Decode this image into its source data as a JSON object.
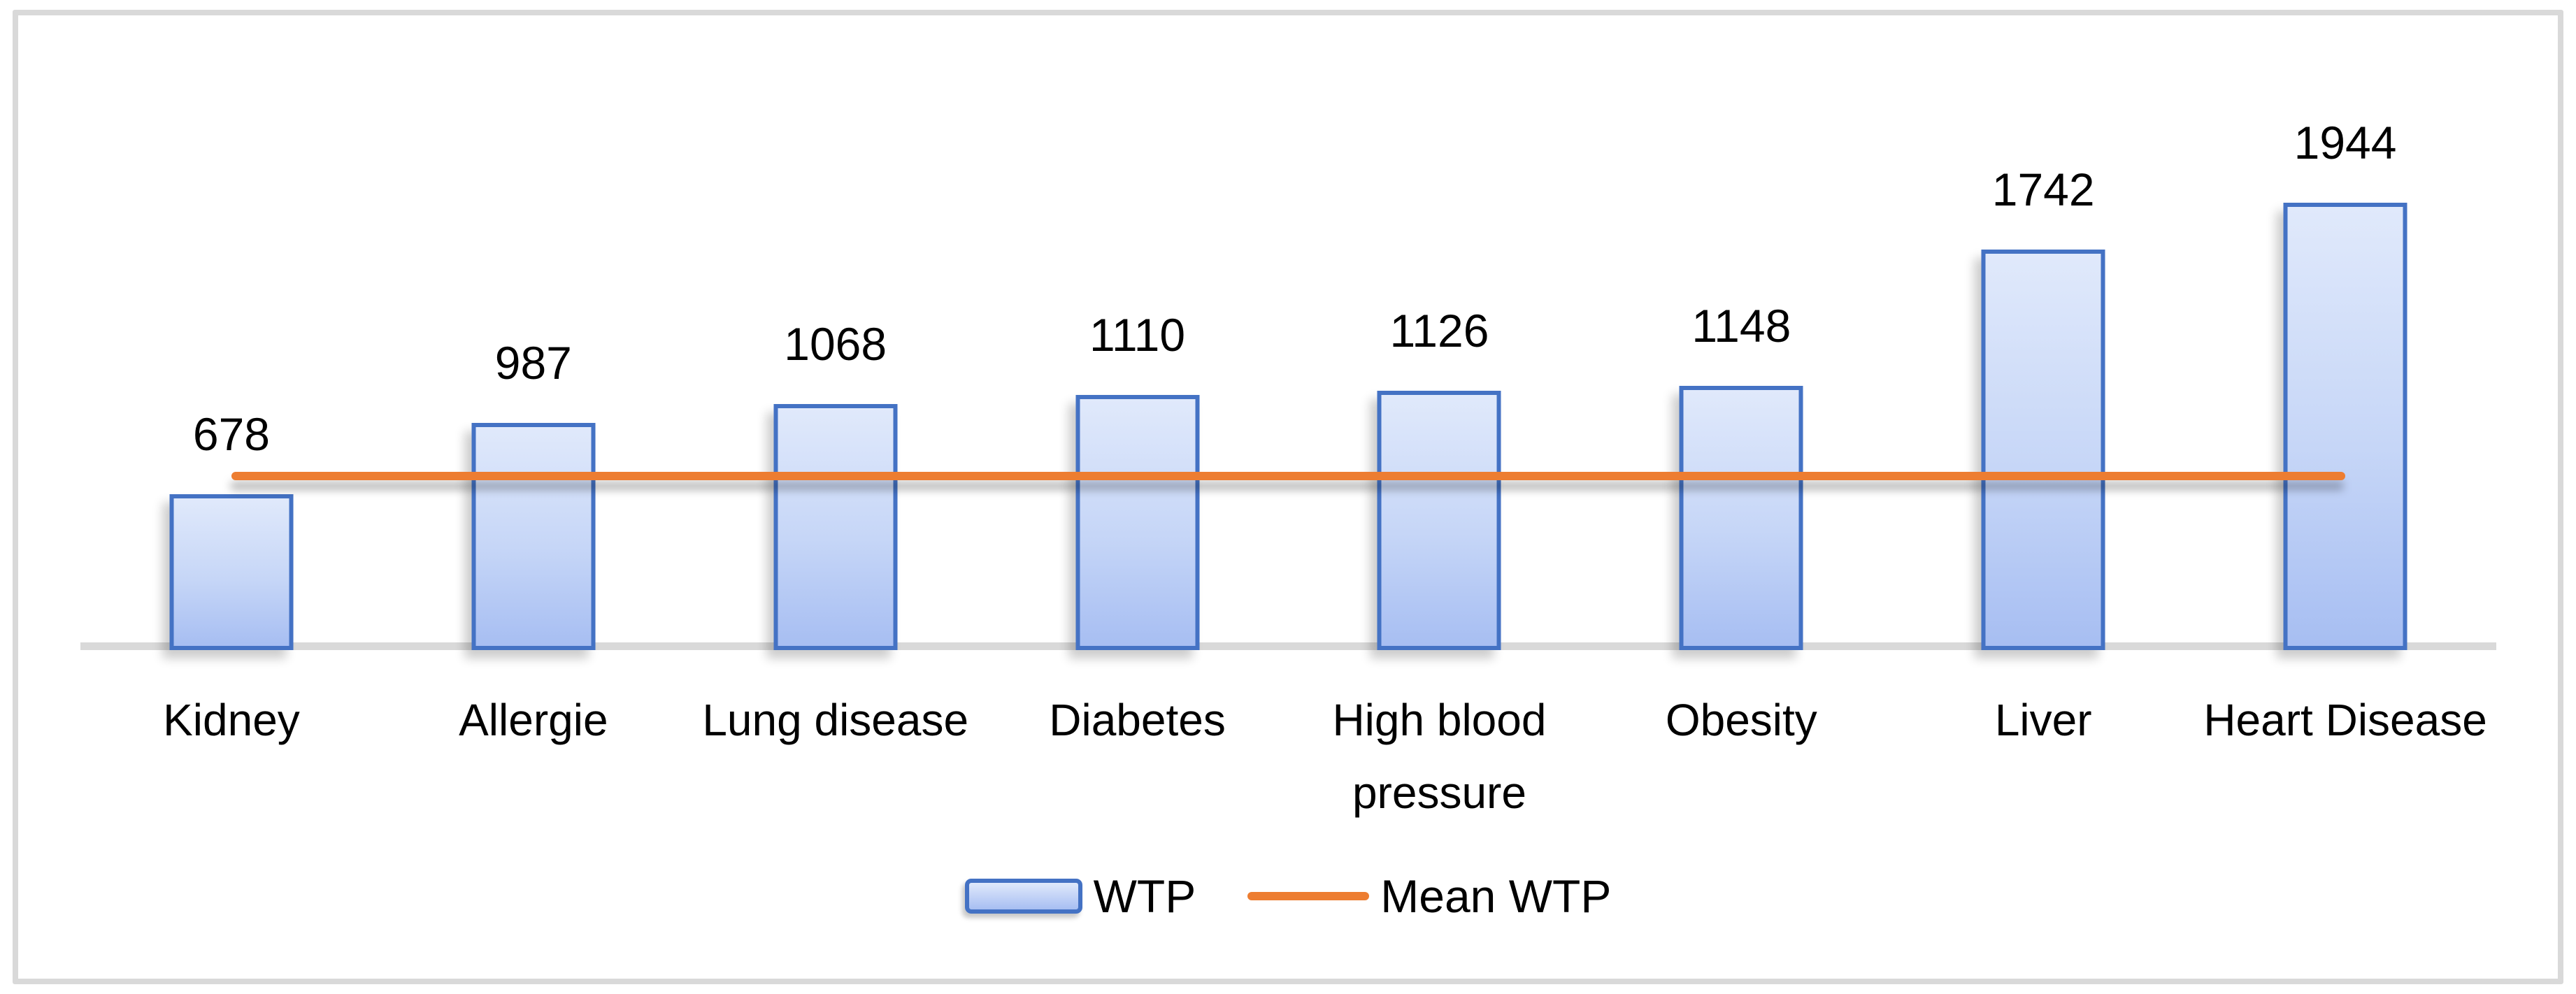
{
  "chart_data": {
    "type": "bar",
    "title": "",
    "xlabel": "",
    "ylabel": "",
    "categories": [
      "Kidney",
      "Allergie",
      "Lung disease",
      "Diabetes",
      "High blood pressure",
      "Obesity",
      "Liver",
      "Heart Disease"
    ],
    "series": [
      {
        "name": "WTP",
        "type": "bar",
        "values": [
          678,
          987,
          1068,
          1110,
          1126,
          1148,
          1742,
          1944
        ]
      },
      {
        "name": "Mean WTP",
        "type": "line",
        "estimated_value": 755,
        "estimated": true
      }
    ],
    "data_labels": [
      678,
      987,
      1068,
      1110,
      1126,
      1148,
      1742,
      1944
    ],
    "legend": {
      "position": "bottom",
      "entries": [
        "WTP",
        "Mean WTP"
      ]
    },
    "axes": {
      "x": {
        "labels_visible": true
      },
      "y": {
        "visible": false,
        "range_estimated": [
          0,
          2100
        ]
      }
    },
    "grid": false
  },
  "colors": {
    "background": "#FFFFFF",
    "frame_border": "#D9D9D9",
    "axis_line": "#D9D9D9",
    "bar_border": "#4472C4",
    "bar_fill_top": "#E0E9FB",
    "bar_fill_bottom": "#A7BEF2",
    "mean_line": "#ED7D31",
    "text": "#000000"
  }
}
